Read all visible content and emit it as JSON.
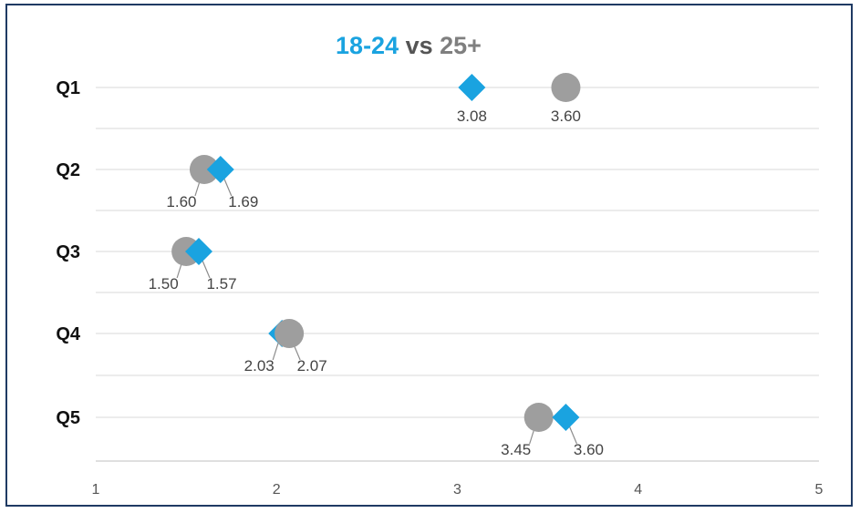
{
  "chart_data": {
    "type": "scatter",
    "title_parts": [
      {
        "text": "18-24",
        "color": "#1aa3e0"
      },
      {
        "text": " vs ",
        "color": "#555555"
      },
      {
        "text": "25+",
        "color": "#7f7f7f"
      }
    ],
    "categories": [
      "Q1",
      "Q2",
      "Q3",
      "Q4",
      "Q5"
    ],
    "xlim": [
      1,
      5
    ],
    "x_ticks": [
      "1",
      "2",
      "3",
      "4",
      "5"
    ],
    "grid": true,
    "series": [
      {
        "name": "18-24",
        "marker": "diamond",
        "color": "#1aa3e0",
        "values": [
          3.08,
          1.69,
          1.57,
          2.03,
          3.6
        ],
        "labels": [
          "3.08",
          "1.69",
          "1.57",
          "2.03",
          "3.60"
        ]
      },
      {
        "name": "25+",
        "marker": "circle",
        "color": "#9e9e9e",
        "values": [
          3.6,
          1.6,
          1.5,
          2.07,
          3.45
        ],
        "labels": [
          "3.60",
          "1.60",
          "1.50",
          "2.07",
          "3.45"
        ]
      }
    ]
  }
}
